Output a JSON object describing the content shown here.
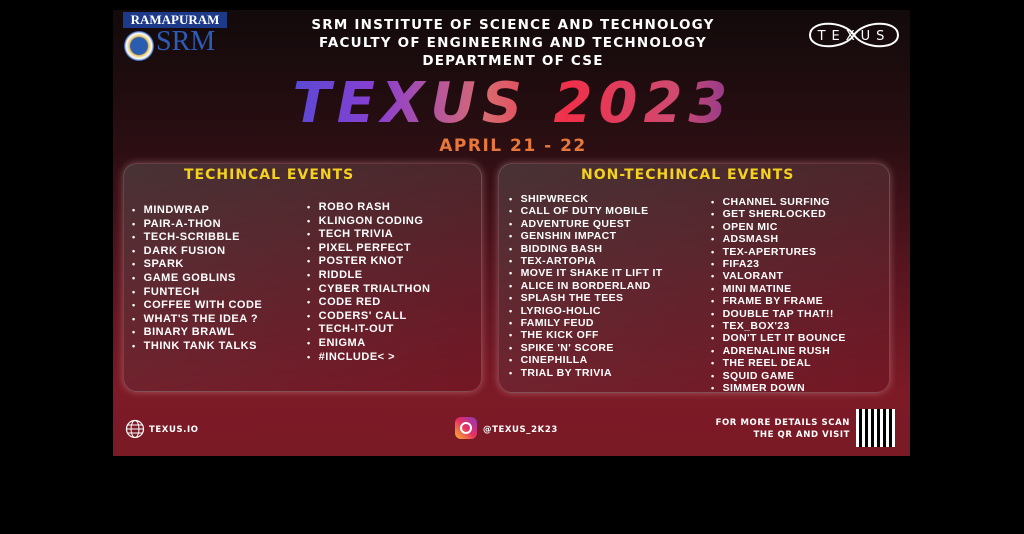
{
  "logos": {
    "left_top": "RAMAPURAM",
    "left_name": "SRM",
    "right": "TEXUS"
  },
  "header": {
    "line1": "SRM INSTITUTE OF SCIENCE AND TECHNOLOGY",
    "line2": "FACULTY OF ENGINEERING AND TECHNOLOGY",
    "line3": "DEPARTMENT OF CSE"
  },
  "title": "TEXUS 2023",
  "date": "APRIL 21 - 22",
  "technical": {
    "heading": "TECHINCAL EVENTS",
    "col1": [
      "MINDWRAP",
      "PAIR-A-THON",
      "TECH-SCRIBBLE",
      "DARK FUSION",
      "SPARK",
      "GAME GOBLINS",
      "FUNTECH",
      "COFFEE WITH CODE",
      "WHAT'S THE IDEA ?",
      "BINARY BRAWL",
      "THINK TANK TALKS"
    ],
    "col2": [
      "ROBO RASH",
      "KLINGON CODING",
      "TECH TRIVIA",
      "PIXEL PERFECT",
      "POSTER KNOT",
      "RIDDLE",
      "CYBER TRIALTHON",
      "CODE RED",
      "CODERS' CALL",
      "TECH-IT-OUT",
      "ENIGMA",
      "#INCLUDE< >"
    ]
  },
  "non_technical": {
    "heading": "NON-TECHINCAL EVENTS",
    "col1": [
      "SHIPWRECK",
      "CALL OF DUTY MOBILE",
      "ADVENTURE QUEST",
      "GENSHIN IMPACT",
      "BIDDING BASH",
      "TEX-ARTOPIA",
      "MOVE IT SHAKE IT LIFT IT",
      "ALICE IN BORDERLAND",
      "SPLASH THE TEES",
      "LYRIGO-HOLIC",
      "FAMILY FEUD",
      "THE KICK OFF",
      "SPIKE 'N' SCORE",
      "CINEPHILLA",
      "TRIAL BY TRIVIA"
    ],
    "col2": [
      "CHANNEL SURFING",
      "GET SHERLOCKED",
      "OPEN MIC",
      "ADSMASH",
      "TEX-APERTURES",
      "FIFA23",
      "VALORANT",
      "MINI MATINE",
      "FRAME BY FRAME",
      "DOUBLE TAP THAT!!",
      "TEX_BOX'23",
      "DON'T LET IT BOUNCE",
      "ADRENALINE RUSH",
      "THE REEL DEAL",
      "SQUID GAME",
      "SIMMER DOWN"
    ]
  },
  "footer": {
    "website": "TEXUS.IO",
    "instagram": "@TEXUS_2K23",
    "details_line1": "FOR MORE DETAILS SCAN",
    "details_line2": "THE QR AND VISIT"
  }
}
